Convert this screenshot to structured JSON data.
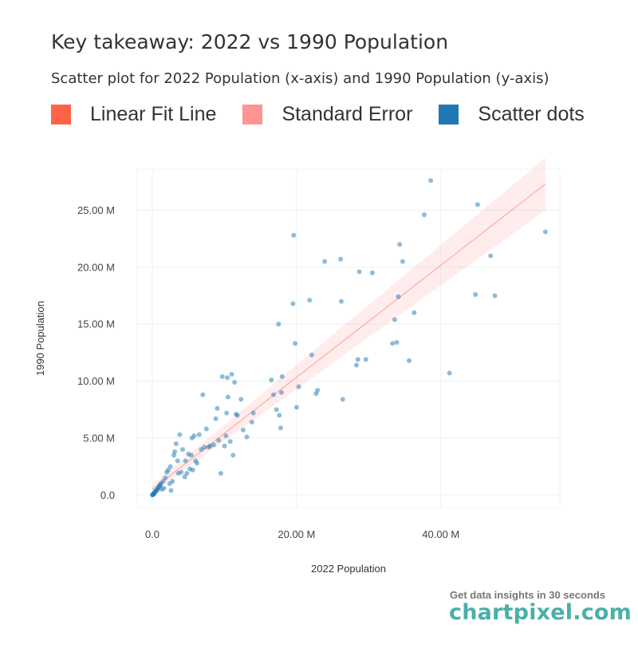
{
  "header": {
    "title": "Key takeaway: 2022 vs 1990 Population",
    "subtitle": "Scatter plot for 2022 Population (x-axis) and 1990 Population (y-axis)"
  },
  "legend": [
    {
      "label": "Linear Fit Line",
      "color": "#ff6347"
    },
    {
      "label": "Standard Error",
      "color": "#ff9494"
    },
    {
      "label": "Scatter dots",
      "color": "#1f77b4"
    }
  ],
  "brand": {
    "tagline": "Get data insights in 30 seconds",
    "logo": "chartpixel.com"
  },
  "chart_data": {
    "type": "scatter",
    "xlabel": "2022 Population",
    "ylabel": "1990 Population",
    "xlim": [
      -2.1,
      56.5
    ],
    "ylim": [
      -1.1,
      28.6
    ],
    "unit": "M",
    "grid": true,
    "x_ticks": [
      {
        "value": 0,
        "label": "0.0"
      },
      {
        "value": 20,
        "label": "20.00 M"
      },
      {
        "value": 40,
        "label": "40.00 M"
      }
    ],
    "y_ticks": [
      {
        "value": 0,
        "label": "0.0"
      },
      {
        "value": 5,
        "label": "5.00 M"
      },
      {
        "value": 10,
        "label": "10.00 M"
      },
      {
        "value": 15,
        "label": "15.00 M"
      },
      {
        "value": 20,
        "label": "20.00 M"
      },
      {
        "value": 25,
        "label": "25.00 M"
      }
    ],
    "fit_line": {
      "x": [
        0.0,
        54.5
      ],
      "y": [
        0.5,
        27.3
      ]
    },
    "standard_error": {
      "x": [
        0.0,
        54.5
      ],
      "lower": [
        0.2,
        25.0
      ],
      "upper": [
        0.9,
        29.6
      ]
    },
    "points": [
      [
        0.0,
        0.0
      ],
      [
        0.05,
        0.02
      ],
      [
        0.1,
        0.05
      ],
      [
        0.15,
        0.1
      ],
      [
        0.2,
        0.08
      ],
      [
        0.25,
        0.15
      ],
      [
        0.3,
        0.2
      ],
      [
        0.4,
        0.3
      ],
      [
        0.5,
        0.4
      ],
      [
        0.6,
        0.35
      ],
      [
        0.7,
        0.5
      ],
      [
        0.8,
        0.6
      ],
      [
        0.9,
        0.7
      ],
      [
        1.0,
        0.8
      ],
      [
        1.1,
        0.9
      ],
      [
        1.2,
        1.0
      ],
      [
        1.3,
        0.5
      ],
      [
        1.5,
        1.2
      ],
      [
        1.6,
        0.6
      ],
      [
        1.8,
        1.5
      ],
      [
        2.0,
        2.0
      ],
      [
        2.2,
        2.2
      ],
      [
        2.4,
        1.0
      ],
      [
        2.5,
        2.5
      ],
      [
        2.6,
        0.4
      ],
      [
        2.8,
        1.2
      ],
      [
        3.0,
        3.5
      ],
      [
        3.1,
        3.8
      ],
      [
        3.3,
        4.5
      ],
      [
        3.5,
        3.0
      ],
      [
        3.6,
        1.9
      ],
      [
        3.8,
        5.3
      ],
      [
        4.0,
        2.0
      ],
      [
        4.2,
        4.0
      ],
      [
        4.5,
        1.6
      ],
      [
        4.6,
        3.0
      ],
      [
        4.8,
        1.9
      ],
      [
        5.0,
        3.6
      ],
      [
        5.2,
        2.3
      ],
      [
        5.4,
        3.5
      ],
      [
        5.5,
        5.0
      ],
      [
        5.6,
        2.2
      ],
      [
        5.8,
        5.2
      ],
      [
        6.0,
        3.0
      ],
      [
        6.2,
        2.8
      ],
      [
        6.5,
        5.3
      ],
      [
        6.8,
        4.0
      ],
      [
        7.0,
        8.8
      ],
      [
        7.2,
        4.2
      ],
      [
        7.5,
        5.8
      ],
      [
        7.8,
        4.2
      ],
      [
        8.0,
        4.3
      ],
      [
        8.5,
        4.4
      ],
      [
        8.8,
        6.7
      ],
      [
        9.0,
        7.6
      ],
      [
        9.2,
        4.8
      ],
      [
        9.5,
        1.9
      ],
      [
        9.7,
        10.4
      ],
      [
        10.0,
        4.3
      ],
      [
        10.2,
        5.2
      ],
      [
        10.3,
        7.2
      ],
      [
        10.4,
        10.3
      ],
      [
        10.5,
        8.6
      ],
      [
        10.8,
        4.7
      ],
      [
        11.0,
        10.6
      ],
      [
        11.2,
        3.5
      ],
      [
        11.4,
        9.9
      ],
      [
        11.6,
        7.1
      ],
      [
        11.8,
        7.0
      ],
      [
        12.3,
        8.4
      ],
      [
        12.6,
        5.7
      ],
      [
        13.1,
        5.1
      ],
      [
        13.8,
        6.4
      ],
      [
        14.0,
        7.2
      ],
      [
        16.5,
        10.1
      ],
      [
        16.8,
        8.8
      ],
      [
        17.2,
        7.5
      ],
      [
        17.5,
        15.0
      ],
      [
        17.6,
        7.0
      ],
      [
        17.8,
        5.9
      ],
      [
        17.9,
        9.0
      ],
      [
        18.0,
        10.4
      ],
      [
        19.5,
        16.8
      ],
      [
        19.6,
        22.8
      ],
      [
        19.8,
        13.3
      ],
      [
        20.0,
        7.7
      ],
      [
        20.3,
        9.5
      ],
      [
        21.8,
        17.1
      ],
      [
        22.1,
        12.3
      ],
      [
        22.7,
        8.9
      ],
      [
        22.9,
        9.2
      ],
      [
        23.9,
        20.5
      ],
      [
        26.1,
        20.7
      ],
      [
        26.2,
        17.0
      ],
      [
        26.4,
        8.4
      ],
      [
        28.3,
        11.4
      ],
      [
        28.5,
        11.9
      ],
      [
        28.7,
        19.6
      ],
      [
        29.6,
        11.9
      ],
      [
        30.5,
        19.5
      ],
      [
        33.3,
        13.3
      ],
      [
        33.6,
        15.4
      ],
      [
        33.9,
        13.4
      ],
      [
        34.1,
        17.4
      ],
      [
        34.3,
        22.0
      ],
      [
        34.7,
        20.5
      ],
      [
        35.6,
        11.8
      ],
      [
        36.3,
        16.0
      ],
      [
        37.7,
        24.6
      ],
      [
        38.6,
        27.6
      ],
      [
        41.2,
        10.7
      ],
      [
        44.8,
        17.6
      ],
      [
        45.1,
        25.5
      ],
      [
        46.9,
        21.0
      ],
      [
        47.5,
        17.5
      ],
      [
        54.5,
        23.1
      ]
    ]
  }
}
